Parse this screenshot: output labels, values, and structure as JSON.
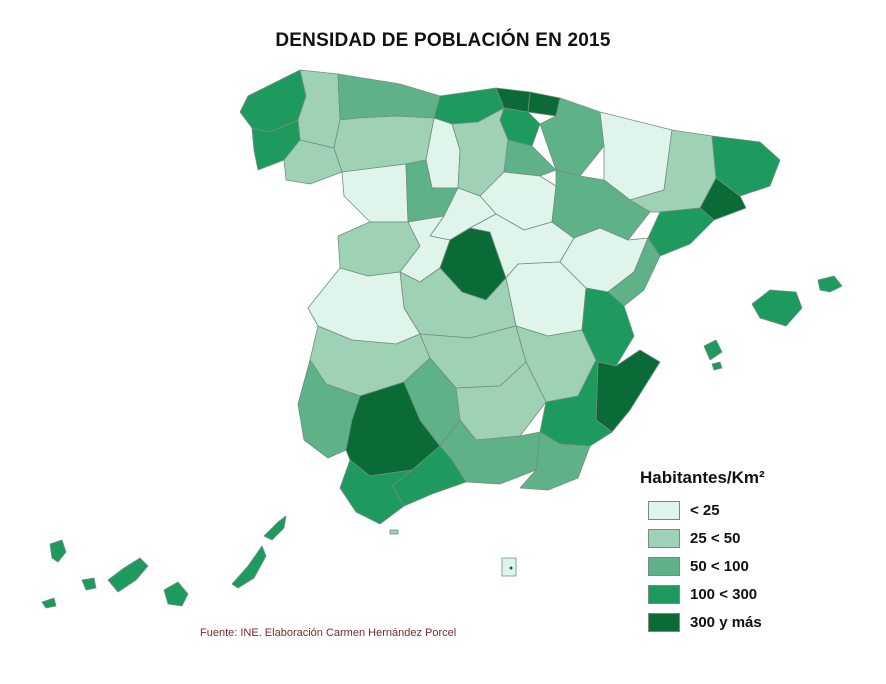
{
  "title": "DENSIDAD DE POBLACIÓN EN 2015",
  "legend": {
    "title": "Habitantes/Km²",
    "items": [
      {
        "label": "< 25",
        "color": "#dff4ea"
      },
      {
        "label": "25 < 50",
        "color": "#9fd2b5"
      },
      {
        "label": "50 < 100",
        "color": "#5fb288"
      },
      {
        "label": "100 < 300",
        "color": "#1f9a5e"
      },
      {
        "label": "300 y más",
        "color": "#0a6b37"
      }
    ]
  },
  "source": "Fuente: INE. Elaboración Carmen Hernández Porcel"
}
